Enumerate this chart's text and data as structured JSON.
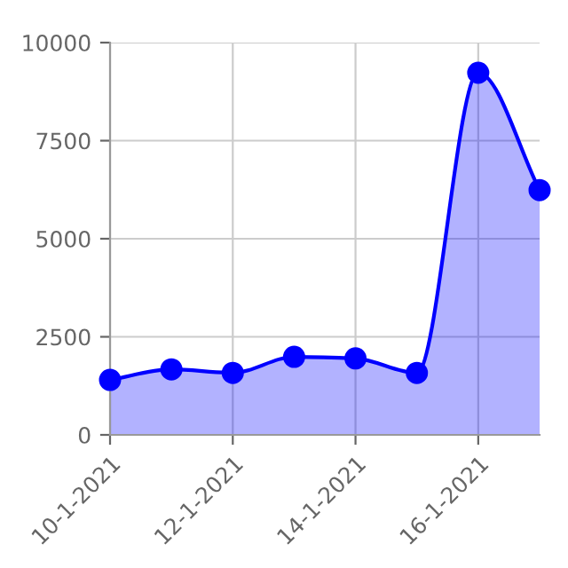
{
  "chart_data": {
    "type": "area",
    "x": [
      "2021-01-10",
      "2021-01-11",
      "2021-01-12",
      "2021-01-13",
      "2021-01-14",
      "2021-01-15",
      "2021-01-16",
      "2021-01-17"
    ],
    "series": [
      {
        "color": "#0000ff",
        "values": [
          1400,
          1670,
          1580,
          1990,
          1950,
          1580,
          9230,
          6240
        ]
      }
    ],
    "xlim": [
      "2021-01-10",
      "2021-01-17"
    ],
    "xticks": [
      {
        "value": "2021-01-10",
        "label": "10-1-2021"
      },
      {
        "value": "2021-01-12",
        "label": "12-1-2021"
      },
      {
        "value": "2021-01-14",
        "label": "14-1-2021"
      },
      {
        "value": "2021-01-16",
        "label": "16-1-2021"
      }
    ],
    "ylim": [
      0,
      10000
    ],
    "yticks": [
      0,
      2500,
      5000,
      7500,
      10000
    ],
    "grid": true,
    "marker": "circle",
    "line_style": "solid"
  }
}
